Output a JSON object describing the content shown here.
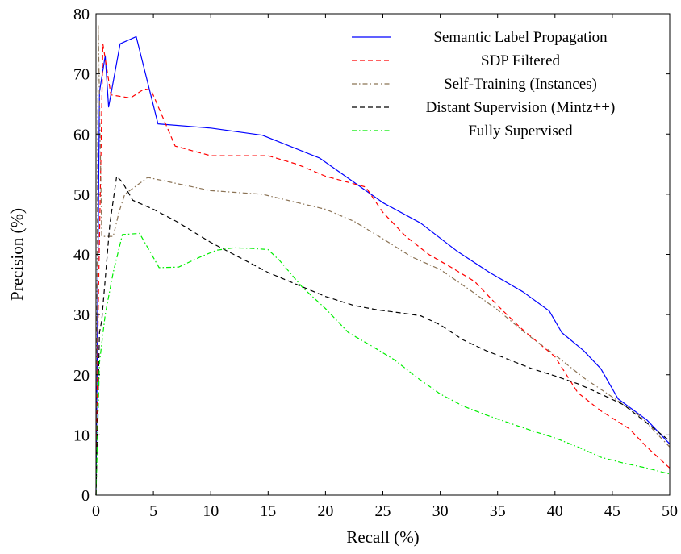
{
  "chart_data": {
    "type": "line",
    "title": "",
    "xlabel": "Recall (%)",
    "ylabel": "Precision (%)",
    "xlim": [
      0,
      50
    ],
    "ylim": [
      0,
      80
    ],
    "xticks": [
      0,
      5,
      10,
      15,
      20,
      25,
      30,
      35,
      40,
      45,
      50
    ],
    "yticks": [
      0,
      10,
      20,
      30,
      40,
      50,
      60,
      70,
      80
    ],
    "grid": false,
    "legend_position": "top-right",
    "series": [
      {
        "name": "Semantic Label Propagation",
        "color": "#0000ff",
        "dash": "solid",
        "points": [
          [
            0,
            0
          ],
          [
            0.3,
            67
          ],
          [
            0.8,
            73
          ],
          [
            1.1,
            64.5
          ],
          [
            2.1,
            75
          ],
          [
            3.5,
            76.2
          ],
          [
            5.4,
            61.7
          ],
          [
            10,
            61
          ],
          [
            14.5,
            59.8
          ],
          [
            19.5,
            56
          ],
          [
            25,
            48.6
          ],
          [
            28.3,
            45.2
          ],
          [
            31.5,
            40.5
          ],
          [
            34.3,
            37
          ],
          [
            37.2,
            33.8
          ],
          [
            39.5,
            30.6
          ],
          [
            40.6,
            27
          ],
          [
            42.5,
            24
          ],
          [
            44,
            21
          ],
          [
            45.5,
            16
          ],
          [
            48,
            12.5
          ],
          [
            50,
            8.5
          ]
        ]
      },
      {
        "name": "SDP Filtered",
        "color": "#ff0000",
        "dash": "dashed",
        "points": [
          [
            0,
            0
          ],
          [
            0.2,
            31
          ],
          [
            0.6,
            75
          ],
          [
            1.3,
            66.5
          ],
          [
            3,
            66
          ],
          [
            4.2,
            67.5
          ],
          [
            4.8,
            67.3
          ],
          [
            6.9,
            58
          ],
          [
            10,
            56.4
          ],
          [
            15,
            56.4
          ],
          [
            17.5,
            55
          ],
          [
            20,
            53
          ],
          [
            23.5,
            51.2
          ],
          [
            25,
            47
          ],
          [
            27,
            43
          ],
          [
            29,
            40
          ],
          [
            31,
            37.8
          ],
          [
            33,
            35.5
          ],
          [
            35,
            31.5
          ],
          [
            37,
            27.8
          ],
          [
            40,
            23
          ],
          [
            42,
            17
          ],
          [
            44,
            14
          ],
          [
            46.5,
            11
          ],
          [
            48,
            8
          ],
          [
            50,
            4.5
          ]
        ]
      },
      {
        "name": "Self-Training (Instances)",
        "color": "#8b7355",
        "dash": "dashdot",
        "points": [
          [
            0,
            0
          ],
          [
            0.2,
            78
          ],
          [
            0.5,
            43
          ],
          [
            1.5,
            43
          ],
          [
            2,
            47
          ],
          [
            2.5,
            50
          ],
          [
            4.5,
            52.8
          ],
          [
            10,
            50.6
          ],
          [
            14.5,
            50
          ],
          [
            20,
            47.5
          ],
          [
            22.5,
            45.5
          ],
          [
            25,
            42.6
          ],
          [
            27.5,
            39.6
          ],
          [
            30,
            37.5
          ],
          [
            32.5,
            34.2
          ],
          [
            35,
            30.8
          ],
          [
            37.5,
            26.8
          ],
          [
            40,
            23.3
          ],
          [
            42.5,
            19.5
          ],
          [
            45,
            16.3
          ],
          [
            47.5,
            13
          ],
          [
            50,
            8
          ]
        ]
      },
      {
        "name": "Distant Supervision (Mintz++)",
        "color": "#000000",
        "dash": "dashed",
        "points": [
          [
            0,
            0
          ],
          [
            0.3,
            27
          ],
          [
            0.5,
            29
          ],
          [
            1.2,
            45
          ],
          [
            1.8,
            53
          ],
          [
            2.3,
            52
          ],
          [
            3.2,
            49
          ],
          [
            5,
            47.5
          ],
          [
            7,
            45.5
          ],
          [
            10,
            42
          ],
          [
            12.5,
            39.5
          ],
          [
            15,
            37
          ],
          [
            17.5,
            35
          ],
          [
            20,
            33
          ],
          [
            22.5,
            31.5
          ],
          [
            24.5,
            30.8
          ],
          [
            26.5,
            30.3
          ],
          [
            28.3,
            29.8
          ],
          [
            30,
            28.3
          ],
          [
            32,
            25.8
          ],
          [
            34,
            24
          ],
          [
            36,
            22.5
          ],
          [
            38,
            21
          ],
          [
            40,
            19.8
          ],
          [
            42,
            18.5
          ],
          [
            44,
            16.8
          ],
          [
            46,
            15
          ],
          [
            48,
            12
          ],
          [
            50,
            9
          ]
        ]
      },
      {
        "name": "Fully Supervised",
        "color": "#00ee00",
        "dash": "dashdot",
        "points": [
          [
            0,
            0
          ],
          [
            0.3,
            22
          ],
          [
            0.8,
            30
          ],
          [
            1.5,
            37
          ],
          [
            2.3,
            43.3
          ],
          [
            3.8,
            43.5
          ],
          [
            5.5,
            37.8
          ],
          [
            7.2,
            37.9
          ],
          [
            9,
            39.5
          ],
          [
            10.5,
            40.7
          ],
          [
            12,
            41.1
          ],
          [
            13.5,
            41
          ],
          [
            15,
            40.8
          ],
          [
            16,
            39
          ],
          [
            18,
            34.5
          ],
          [
            20,
            31
          ],
          [
            22,
            27
          ],
          [
            24,
            24.8
          ],
          [
            26,
            22.5
          ],
          [
            28,
            19.5
          ],
          [
            30,
            16.8
          ],
          [
            32,
            14.8
          ],
          [
            34,
            13.3
          ],
          [
            36,
            12
          ],
          [
            38,
            10.7
          ],
          [
            40,
            9.5
          ],
          [
            42,
            8
          ],
          [
            44,
            6.3
          ],
          [
            46,
            5.3
          ],
          [
            48,
            4.5
          ],
          [
            50,
            3.5
          ]
        ]
      }
    ]
  }
}
